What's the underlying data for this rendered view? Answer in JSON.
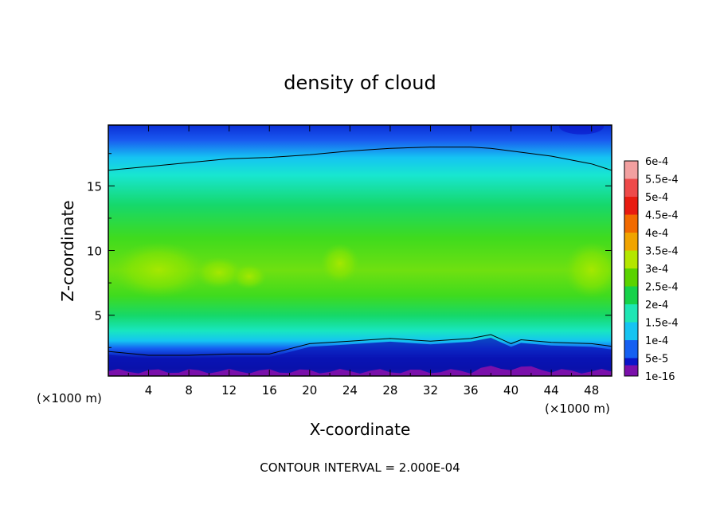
{
  "chart_data": {
    "type": "heatmap",
    "subtype": "filled-contour",
    "title": "density of cloud",
    "xlabel": "X-coordinate",
    "ylabel": "Z-coordinate",
    "x_unit_left": "(×1000 m)",
    "x_unit_right": "(×1000 m)",
    "xlim": [
      0,
      50
    ],
    "ylim": [
      0.3,
      19.7
    ],
    "xticks": [
      4,
      8,
      12,
      16,
      20,
      24,
      28,
      32,
      36,
      40,
      44,
      48
    ],
    "yticks": [
      5,
      10,
      15
    ],
    "note": "CONTOUR INTERVAL = 2.000E-04",
    "colorbar": {
      "labels": [
        "6e-4",
        "5.5e-4",
        "5e-4",
        "4.5e-4",
        "4e-4",
        "3.5e-4",
        "3e-4",
        "2.5e-4",
        "2e-4",
        "1.5e-4",
        "1e-4",
        "5e-5",
        "1e-16"
      ],
      "colors": [
        "#f2a0a0",
        "#ee4a4a",
        "#e81b10",
        "#f26a00",
        "#f0a400",
        "#b4e600",
        "#5ad300",
        "#16d24a",
        "#1ee6b4",
        "#15c4f2",
        "#1560f2",
        "#0a14c8",
        "#7a10aa"
      ]
    },
    "profile_x": [
      0,
      4,
      8,
      12,
      16,
      20,
      24,
      28,
      32,
      36,
      38,
      40,
      41,
      44,
      48,
      50
    ],
    "top_contour_z": [
      16.2,
      16.5,
      16.8,
      17.1,
      17.2,
      17.4,
      17.7,
      17.9,
      18.0,
      18.0,
      17.9,
      17.7,
      17.6,
      17.3,
      16.7,
      16.2
    ],
    "bottom_contour_z": [
      2.2,
      1.9,
      1.9,
      2.0,
      2.0,
      2.8,
      3.0,
      3.2,
      3.0,
      3.2,
      3.5,
      2.8,
      3.1,
      2.9,
      2.8,
      2.6
    ],
    "colors": {
      "top_band": "#1a5af0",
      "upper_cyan": "#18e6d0",
      "mid_green": "#3fdb1e",
      "core_yellow_green": "#8fe600",
      "lower_blue": "#1560f2",
      "bottom_navy": "#0a14b4",
      "bottom_purple": "#7a10aa"
    }
  }
}
